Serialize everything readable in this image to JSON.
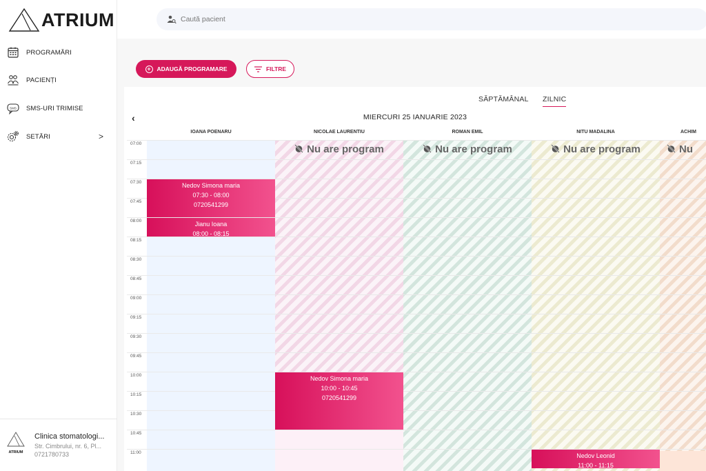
{
  "brand": {
    "name": "ATRIUM",
    "footer_mini": "ATRIUM"
  },
  "sidebar": {
    "items": [
      {
        "label": "PROGRAMĂRI",
        "icon": "calendar-icon"
      },
      {
        "label": "PACIENȚI",
        "icon": "patients-icon"
      },
      {
        "label": "SMS-URI TRIMISE",
        "icon": "sms-icon"
      },
      {
        "label": "SETĂRI",
        "icon": "settings-icon"
      }
    ],
    "clinic": {
      "name": "Clinica stomatologi...",
      "address": "Str. Cimbrului, nr. 6, Pl...",
      "phone": "0721780733"
    }
  },
  "search": {
    "placeholder": "Caută pacient",
    "value": ""
  },
  "toolbar": {
    "add_label": "ADAUGĂ PROGRAMARE",
    "filter_label": "FILTRE"
  },
  "calendar": {
    "tabs": [
      {
        "label": "SĂPTĂMÂNAL",
        "active": false
      },
      {
        "label": "ZILNIC",
        "active": true
      }
    ],
    "date_title": "MIERCURI 25 IANUARIE 2023",
    "no_program_label": "Nu are program",
    "no_program_truncated": "Nu",
    "doctors": [
      "IOANA POENARU",
      "NICOLAE LAURENTIU",
      "ROMAN EMIL",
      "NITU MADALINA",
      "ACHIM"
    ],
    "times": [
      "07:00",
      "07:15",
      "07:30",
      "07:45",
      "08:00",
      "08:15",
      "08:30",
      "08:45",
      "09:00",
      "09:15",
      "09:30",
      "09:45",
      "10:00",
      "10:15",
      "10:30",
      "10:45",
      "11:00"
    ],
    "appointments": [
      {
        "doctor": 0,
        "start": "07:30",
        "end": "08:00",
        "name": "Nedov Simona maria",
        "time": "07:30 - 08:00",
        "phone": "0720541299"
      },
      {
        "doctor": 0,
        "start": "08:00",
        "end": "08:15",
        "name": "Jianu Ioana",
        "time": "08:00 - 08:15",
        "phone": ""
      },
      {
        "doctor": 1,
        "start": "10:00",
        "end": "10:45",
        "name": "Nedov Simona maria",
        "time": "10:00 - 10:45",
        "phone": "0720541299"
      },
      {
        "doctor": 3,
        "start": "11:00",
        "end": "11:15",
        "name": "Nedov Leonid",
        "time": "11:00 - 11:15",
        "phone": ""
      }
    ]
  },
  "colors": {
    "accent": "#d6185a",
    "accent_light": "#f2528e"
  }
}
